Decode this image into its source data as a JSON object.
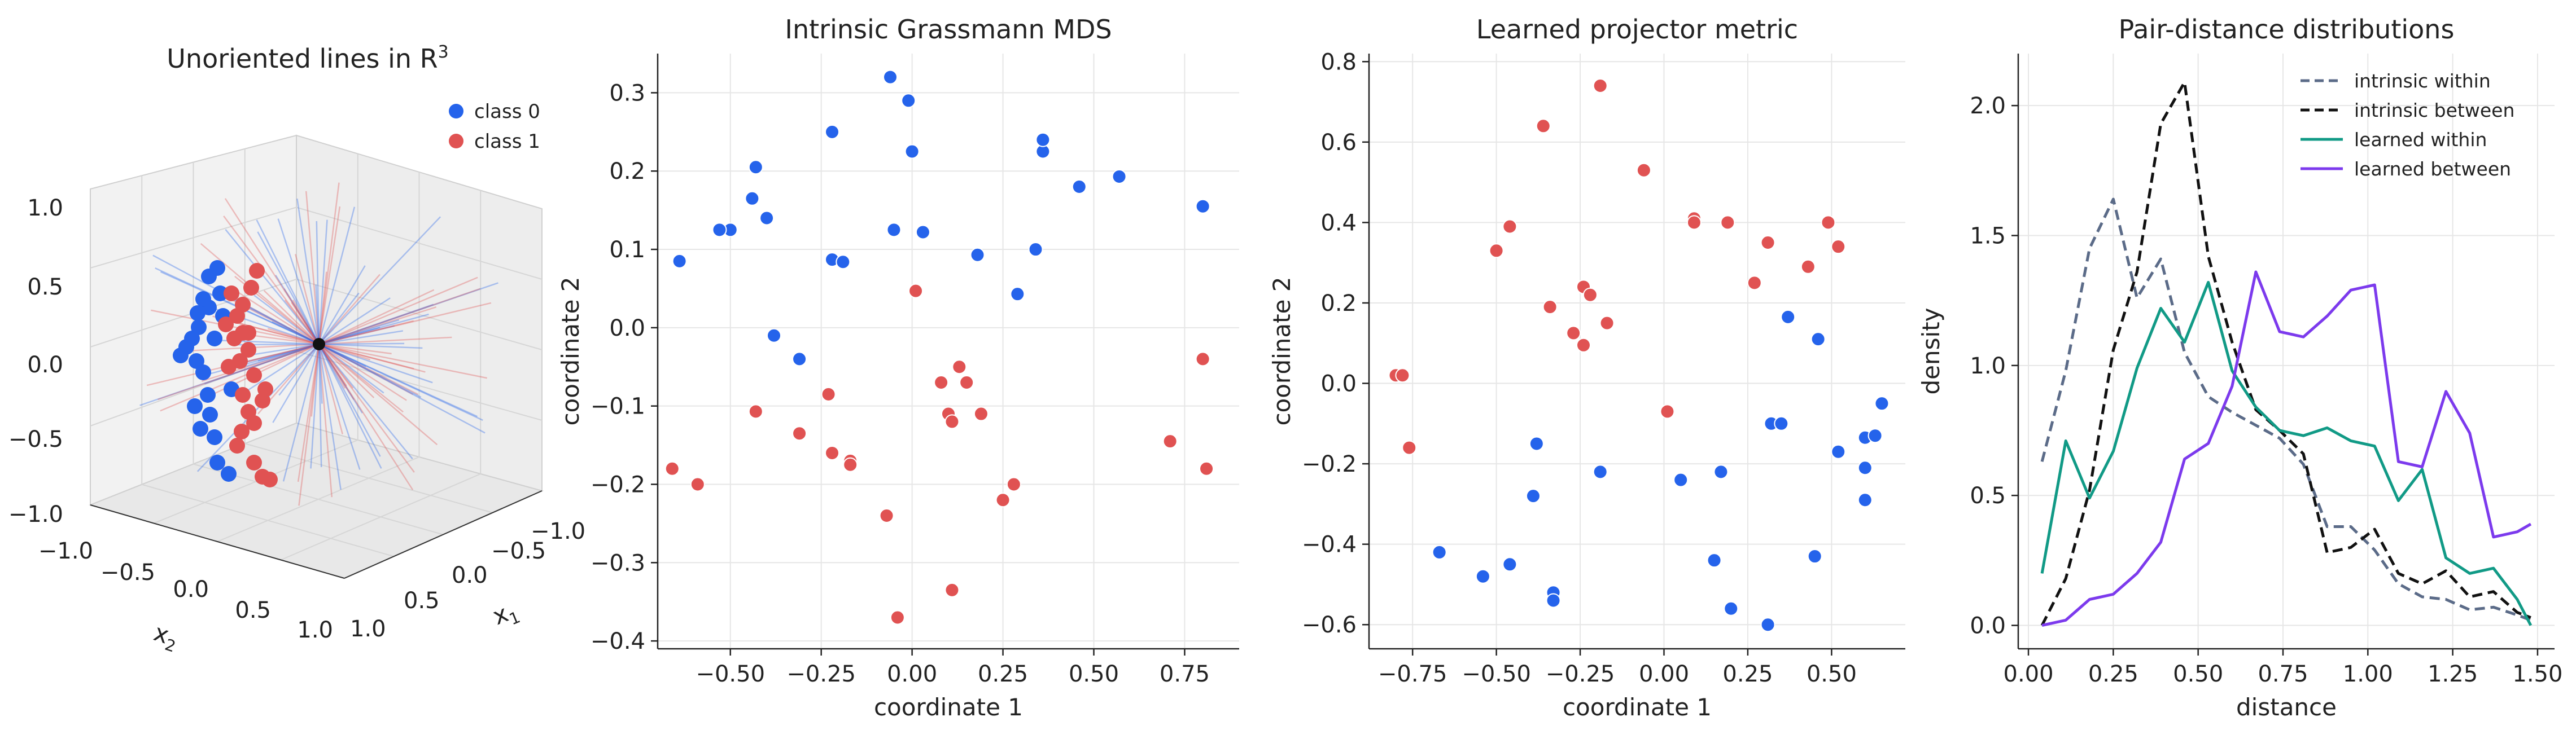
{
  "colors": {
    "class0": "#2563eb",
    "class1": "#e05252",
    "intrinsic_within": "#5b6b88",
    "intrinsic_between": "#111111",
    "learned_within": "#119a86",
    "learned_between": "#7c3aed",
    "grid": "#e6e6e6"
  },
  "chart_data": [
    {
      "type": "scatter",
      "title": "Unoriented lines in R",
      "title_superscript": "3",
      "xlabel": "x",
      "xlabel_sub": "1",
      "ylabel": "x",
      "ylabel_sub": "2",
      "xlim": [
        -1.0,
        1.0
      ],
      "ylim": [
        -1.0,
        1.0
      ],
      "zlim": [
        -1.0,
        1.0
      ],
      "x_ticks": [
        "−1.0",
        "−0.5",
        "0.0",
        "0.5",
        "1.0"
      ],
      "y_ticks": [
        "−1.0",
        "−0.5",
        "0.0",
        "0.5",
        "1.0"
      ],
      "z_ticks": [
        "1.0",
        "0.5",
        "0.0",
        "−0.5",
        "−1.0"
      ],
      "legend": [
        "class 0",
        "class 1"
      ],
      "legend_position": "top-right",
      "grid": true
    },
    {
      "type": "scatter",
      "title": "Intrinsic Grassmann MDS",
      "xlabel": "coordinate 1",
      "ylabel": "coordinate 2",
      "xlim": [
        -0.7,
        0.9
      ],
      "ylim": [
        -0.41,
        0.35
      ],
      "x_ticks": [
        -0.5,
        -0.25,
        0.0,
        0.25,
        0.5,
        0.75
      ],
      "x_tick_labels": [
        "−0.50",
        "−0.25",
        "0.00",
        "0.25",
        "0.50",
        "0.75"
      ],
      "y_ticks": [
        -0.4,
        -0.3,
        -0.2,
        -0.1,
        0.0,
        0.1,
        0.2,
        0.3
      ],
      "y_tick_labels": [
        "−0.4",
        "−0.3",
        "−0.2",
        "−0.1",
        "0.0",
        "0.1",
        "0.2",
        "0.3"
      ],
      "grid": true,
      "series": [
        {
          "name": "class 0",
          "points": [
            [
              -0.06,
              0.32
            ],
            [
              -0.01,
              0.29
            ],
            [
              0.0,
              0.225
            ],
            [
              -0.22,
              0.25
            ],
            [
              -0.43,
              0.205
            ],
            [
              -0.44,
              0.165
            ],
            [
              -0.4,
              0.14
            ],
            [
              -0.5,
              0.125
            ],
            [
              -0.53,
              0.125
            ],
            [
              -0.64,
              0.085
            ],
            [
              -0.22,
              0.087
            ],
            [
              -0.19,
              0.084
            ],
            [
              -0.05,
              0.125
            ],
            [
              0.03,
              0.122
            ],
            [
              0.18,
              0.093
            ],
            [
              0.34,
              0.1
            ],
            [
              0.36,
              0.225
            ],
            [
              0.36,
              0.24
            ],
            [
              0.46,
              0.18
            ],
            [
              0.57,
              0.193
            ],
            [
              0.8,
              0.155
            ],
            [
              0.29,
              0.043
            ],
            [
              -0.38,
              -0.01
            ],
            [
              -0.31,
              -0.04
            ]
          ]
        },
        {
          "name": "class 1",
          "points": [
            [
              0.01,
              0.047
            ],
            [
              0.13,
              -0.05
            ],
            [
              0.15,
              -0.07
            ],
            [
              0.08,
              -0.07
            ],
            [
              0.1,
              -0.11
            ],
            [
              0.11,
              -0.12
            ],
            [
              0.19,
              -0.11
            ],
            [
              0.8,
              -0.04
            ],
            [
              0.71,
              -0.145
            ],
            [
              0.81,
              -0.18
            ],
            [
              0.28,
              -0.2
            ],
            [
              0.25,
              -0.22
            ],
            [
              0.11,
              -0.335
            ],
            [
              -0.07,
              -0.24
            ],
            [
              -0.04,
              -0.37
            ],
            [
              -0.17,
              -0.17
            ],
            [
              -0.17,
              -0.175
            ],
            [
              -0.22,
              -0.16
            ],
            [
              -0.31,
              -0.135
            ],
            [
              -0.23,
              -0.085
            ],
            [
              -0.43,
              -0.107
            ],
            [
              -0.59,
              -0.2
            ],
            [
              -0.66,
              -0.18
            ]
          ]
        }
      ]
    },
    {
      "type": "scatter",
      "title": "Learned projector metric",
      "xlabel": "coordinate 1",
      "ylabel": "coordinate 2",
      "xlim": [
        -0.88,
        0.72
      ],
      "ylim": [
        -0.66,
        0.82
      ],
      "x_ticks": [
        -0.75,
        -0.5,
        -0.25,
        0.0,
        0.25,
        0.5
      ],
      "x_tick_labels": [
        "−0.75",
        "−0.50",
        "−0.25",
        "0.00",
        "0.25",
        "0.50"
      ],
      "y_ticks": [
        -0.6,
        -0.4,
        -0.2,
        0.0,
        0.2,
        0.4,
        0.6,
        0.8
      ],
      "y_tick_labels": [
        "−0.6",
        "−0.4",
        "−0.2",
        "0.0",
        "0.2",
        "0.4",
        "0.6",
        "0.8"
      ],
      "grid": true,
      "series": [
        {
          "name": "class 0",
          "points": [
            [
              -0.38,
              -0.15
            ],
            [
              -0.39,
              -0.28
            ],
            [
              -0.19,
              -0.22
            ],
            [
              0.05,
              -0.24
            ],
            [
              0.17,
              -0.22
            ],
            [
              0.15,
              -0.44
            ],
            [
              0.2,
              -0.56
            ],
            [
              0.31,
              -0.6
            ],
            [
              0.45,
              -0.43
            ],
            [
              0.32,
              -0.1
            ],
            [
              0.35,
              -0.1
            ],
            [
              0.52,
              -0.17
            ],
            [
              0.6,
              -0.21
            ],
            [
              0.6,
              -0.29
            ],
            [
              0.6,
              -0.135
            ],
            [
              0.63,
              -0.13
            ],
            [
              0.65,
              -0.05
            ],
            [
              0.46,
              0.11
            ],
            [
              0.37,
              0.165
            ],
            [
              -0.33,
              -0.52
            ],
            [
              -0.33,
              -0.54
            ],
            [
              -0.46,
              -0.45
            ],
            [
              -0.54,
              -0.48
            ],
            [
              -0.67,
              -0.42
            ]
          ]
        },
        {
          "name": "class 1",
          "points": [
            [
              -0.19,
              0.74
            ],
            [
              -0.36,
              0.64
            ],
            [
              -0.06,
              0.53
            ],
            [
              -0.46,
              0.39
            ],
            [
              -0.5,
              0.33
            ],
            [
              0.09,
              0.41
            ],
            [
              0.09,
              0.4
            ],
            [
              0.19,
              0.4
            ],
            [
              0.31,
              0.35
            ],
            [
              0.49,
              0.4
            ],
            [
              0.52,
              0.34
            ],
            [
              0.43,
              0.29
            ],
            [
              0.27,
              0.25
            ],
            [
              -0.24,
              0.24
            ],
            [
              -0.22,
              0.22
            ],
            [
              -0.34,
              0.19
            ],
            [
              -0.17,
              0.15
            ],
            [
              -0.27,
              0.125
            ],
            [
              -0.24,
              0.095
            ],
            [
              0.01,
              -0.07
            ],
            [
              -0.8,
              0.02
            ],
            [
              -0.78,
              0.02
            ],
            [
              -0.76,
              -0.16
            ]
          ]
        }
      ]
    },
    {
      "type": "line",
      "title": "Pair-distance distributions",
      "xlabel": "distance",
      "ylabel": "density",
      "xlim": [
        -0.03,
        1.55
      ],
      "ylim": [
        -0.09,
        2.2
      ],
      "x_ticks": [
        0.0,
        0.25,
        0.5,
        0.75,
        1.0,
        1.25,
        1.5
      ],
      "x_tick_labels": [
        "0.00",
        "0.25",
        "0.50",
        "0.75",
        "1.00",
        "1.25",
        "1.50"
      ],
      "y_ticks": [
        0.0,
        0.5,
        1.0,
        1.5,
        2.0
      ],
      "y_tick_labels": [
        "0.0",
        "0.5",
        "1.0",
        "1.5",
        "2.0"
      ],
      "grid": true,
      "legend_position": "top-right",
      "x": [
        0.04,
        0.11,
        0.18,
        0.25,
        0.32,
        0.39,
        0.46,
        0.53,
        0.6,
        0.67,
        0.74,
        0.81,
        0.88,
        0.95,
        1.02,
        1.09,
        1.16,
        1.23,
        1.3,
        1.37,
        1.44,
        1.48
      ],
      "series": [
        {
          "name": "intrinsic within",
          "dash": true,
          "values": [
            0.63,
            0.98,
            1.45,
            1.64,
            1.26,
            1.41,
            1.05,
            0.88,
            0.82,
            0.77,
            0.72,
            0.62,
            0.38,
            0.38,
            0.29,
            0.16,
            0.11,
            0.1,
            0.06,
            0.07,
            0.04,
            0.02
          ]
        },
        {
          "name": "intrinsic between",
          "dash": true,
          "values": [
            0.0,
            0.18,
            0.52,
            1.06,
            1.36,
            1.93,
            2.09,
            1.42,
            1.09,
            0.83,
            0.75,
            0.66,
            0.28,
            0.3,
            0.37,
            0.2,
            0.16,
            0.21,
            0.11,
            0.13,
            0.05,
            0.03
          ]
        },
        {
          "name": "learned within",
          "dash": false,
          "values": [
            0.2,
            0.71,
            0.49,
            0.67,
            0.99,
            1.22,
            1.09,
            1.32,
            0.98,
            0.84,
            0.75,
            0.73,
            0.76,
            0.71,
            0.69,
            0.48,
            0.6,
            0.26,
            0.2,
            0.22,
            0.1,
            0.0
          ]
        },
        {
          "name": "learned between",
          "dash": false,
          "values": [
            0.0,
            0.02,
            0.1,
            0.12,
            0.2,
            0.32,
            0.64,
            0.7,
            0.92,
            1.36,
            1.13,
            1.11,
            1.19,
            1.29,
            1.31,
            0.63,
            0.61,
            0.9,
            0.74,
            0.34,
            0.36,
            0.39
          ]
        }
      ]
    }
  ]
}
